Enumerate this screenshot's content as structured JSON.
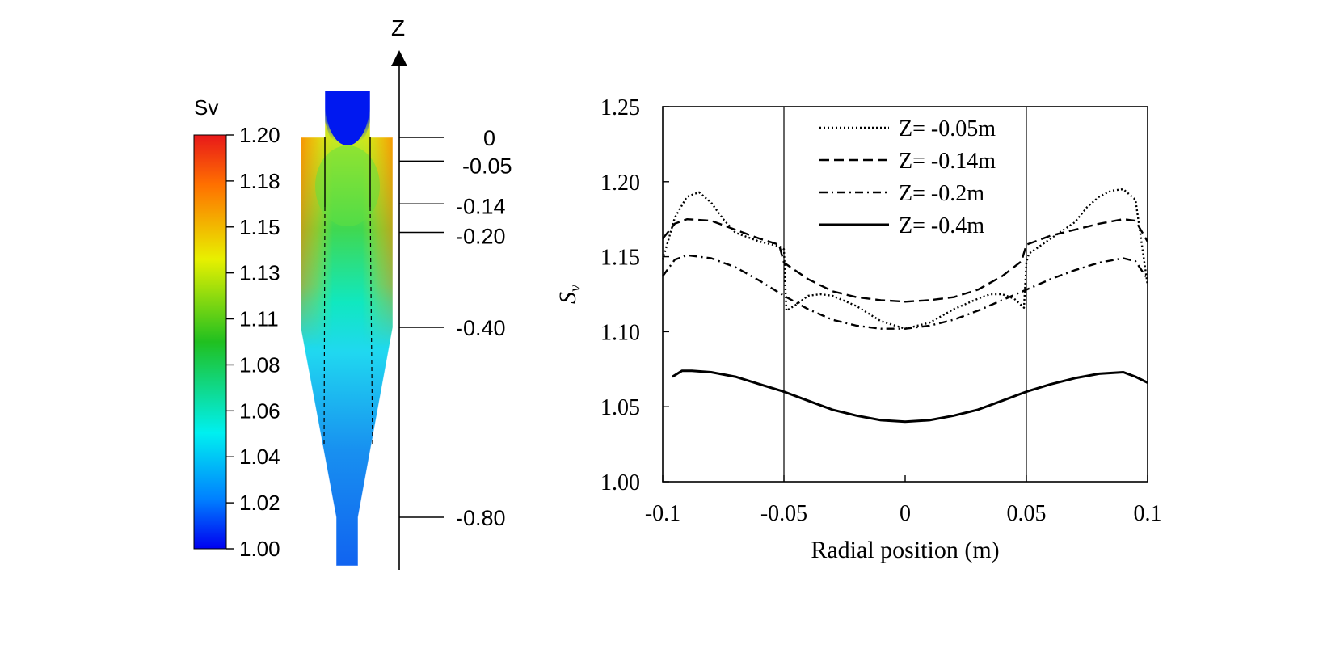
{
  "colorbar": {
    "title": "Sv",
    "ticks": [
      "1.20",
      "1.18",
      "1.15",
      "1.13",
      "1.11",
      "1.08",
      "1.06",
      "1.04",
      "1.02",
      "1.00"
    ],
    "range": [
      1.0,
      1.2
    ]
  },
  "z_axis": {
    "label": "Z",
    "markers": [
      {
        "label": "0",
        "z": 0
      },
      {
        "label": "-0.05",
        "z": -0.05
      },
      {
        "label": "-0.14",
        "z": -0.14
      },
      {
        "label": "-0.20",
        "z": -0.2
      },
      {
        "label": "-0.40",
        "z": -0.4
      },
      {
        "label": "-0.80",
        "z": -0.8
      }
    ]
  },
  "chart_data": {
    "type": "line",
    "title": "",
    "xlabel": "Radial position (m)",
    "ylabel": "Sv",
    "xlim": [
      -0.1,
      0.1
    ],
    "ylim": [
      1.0,
      1.25
    ],
    "xticks": [
      {
        "v": -0.1,
        "label": "-0.1"
      },
      {
        "v": -0.05,
        "label": "-0.05"
      },
      {
        "v": 0,
        "label": "0"
      },
      {
        "v": 0.05,
        "label": "0.05"
      },
      {
        "v": 0.1,
        "label": "0.1"
      }
    ],
    "yticks": [
      {
        "v": 1.0,
        "label": "1.00"
      },
      {
        "v": 1.05,
        "label": "1.05"
      },
      {
        "v": 1.1,
        "label": "1.10"
      },
      {
        "v": 1.15,
        "label": "1.15"
      },
      {
        "v": 1.2,
        "label": "1.20"
      },
      {
        "v": 1.25,
        "label": "1.25"
      }
    ],
    "vlines": [
      -0.05,
      0.05
    ],
    "grid": false,
    "legend_position": "top-center",
    "series": [
      {
        "name": "Z= -0.05m",
        "dash": "dotted",
        "x": [
          -0.1,
          -0.095,
          -0.09,
          -0.085,
          -0.08,
          -0.075,
          -0.07,
          -0.06,
          -0.052,
          -0.05,
          -0.049,
          -0.045,
          -0.04,
          -0.035,
          -0.03,
          -0.02,
          -0.01,
          0,
          0.01,
          0.02,
          0.03,
          0.035,
          0.04,
          0.045,
          0.049,
          0.05,
          0.051,
          0.06,
          0.07,
          0.075,
          0.08,
          0.085,
          0.09,
          0.095,
          0.1
        ],
        "y": [
          1.148,
          1.176,
          1.19,
          1.193,
          1.186,
          1.175,
          1.166,
          1.16,
          1.157,
          1.155,
          1.114,
          1.118,
          1.124,
          1.125,
          1.124,
          1.117,
          1.107,
          1.102,
          1.106,
          1.115,
          1.122,
          1.125,
          1.125,
          1.122,
          1.116,
          1.146,
          1.152,
          1.162,
          1.173,
          1.183,
          1.19,
          1.194,
          1.195,
          1.188,
          1.131
        ]
      },
      {
        "name": "Z= -0.14m",
        "dash": "dashed",
        "x": [
          -0.1,
          -0.095,
          -0.09,
          -0.08,
          -0.07,
          -0.06,
          -0.052,
          -0.05,
          -0.04,
          -0.03,
          -0.02,
          -0.01,
          0,
          0.01,
          0.02,
          0.03,
          0.04,
          0.048,
          0.05,
          0.06,
          0.07,
          0.08,
          0.09,
          0.095,
          0.1
        ],
        "y": [
          1.162,
          1.172,
          1.175,
          1.174,
          1.168,
          1.162,
          1.158,
          1.146,
          1.135,
          1.127,
          1.123,
          1.121,
          1.12,
          1.121,
          1.123,
          1.128,
          1.137,
          1.147,
          1.158,
          1.164,
          1.168,
          1.172,
          1.175,
          1.174,
          1.16
        ]
      },
      {
        "name": "Z= -0.2m",
        "dash": "dashdot",
        "x": [
          -0.1,
          -0.095,
          -0.09,
          -0.08,
          -0.07,
          -0.06,
          -0.05,
          -0.04,
          -0.03,
          -0.02,
          -0.01,
          0,
          0.01,
          0.02,
          0.03,
          0.04,
          0.05,
          0.06,
          0.07,
          0.08,
          0.09,
          0.095,
          0.1
        ],
        "y": [
          1.137,
          1.148,
          1.151,
          1.149,
          1.143,
          1.134,
          1.124,
          1.115,
          1.108,
          1.104,
          1.102,
          1.102,
          1.104,
          1.108,
          1.114,
          1.121,
          1.128,
          1.135,
          1.141,
          1.146,
          1.149,
          1.147,
          1.135
        ]
      },
      {
        "name": "Z= -0.4m",
        "dash": "solid",
        "x": [
          -0.096,
          -0.092,
          -0.088,
          -0.08,
          -0.07,
          -0.06,
          -0.05,
          -0.04,
          -0.03,
          -0.02,
          -0.01,
          0,
          0.01,
          0.02,
          0.03,
          0.04,
          0.05,
          0.06,
          0.07,
          0.08,
          0.09,
          0.095,
          0.1
        ],
        "y": [
          1.07,
          1.074,
          1.074,
          1.073,
          1.07,
          1.065,
          1.06,
          1.054,
          1.048,
          1.044,
          1.041,
          1.04,
          1.041,
          1.044,
          1.048,
          1.054,
          1.06,
          1.065,
          1.069,
          1.072,
          1.073,
          1.07,
          1.066
        ]
      }
    ]
  }
}
